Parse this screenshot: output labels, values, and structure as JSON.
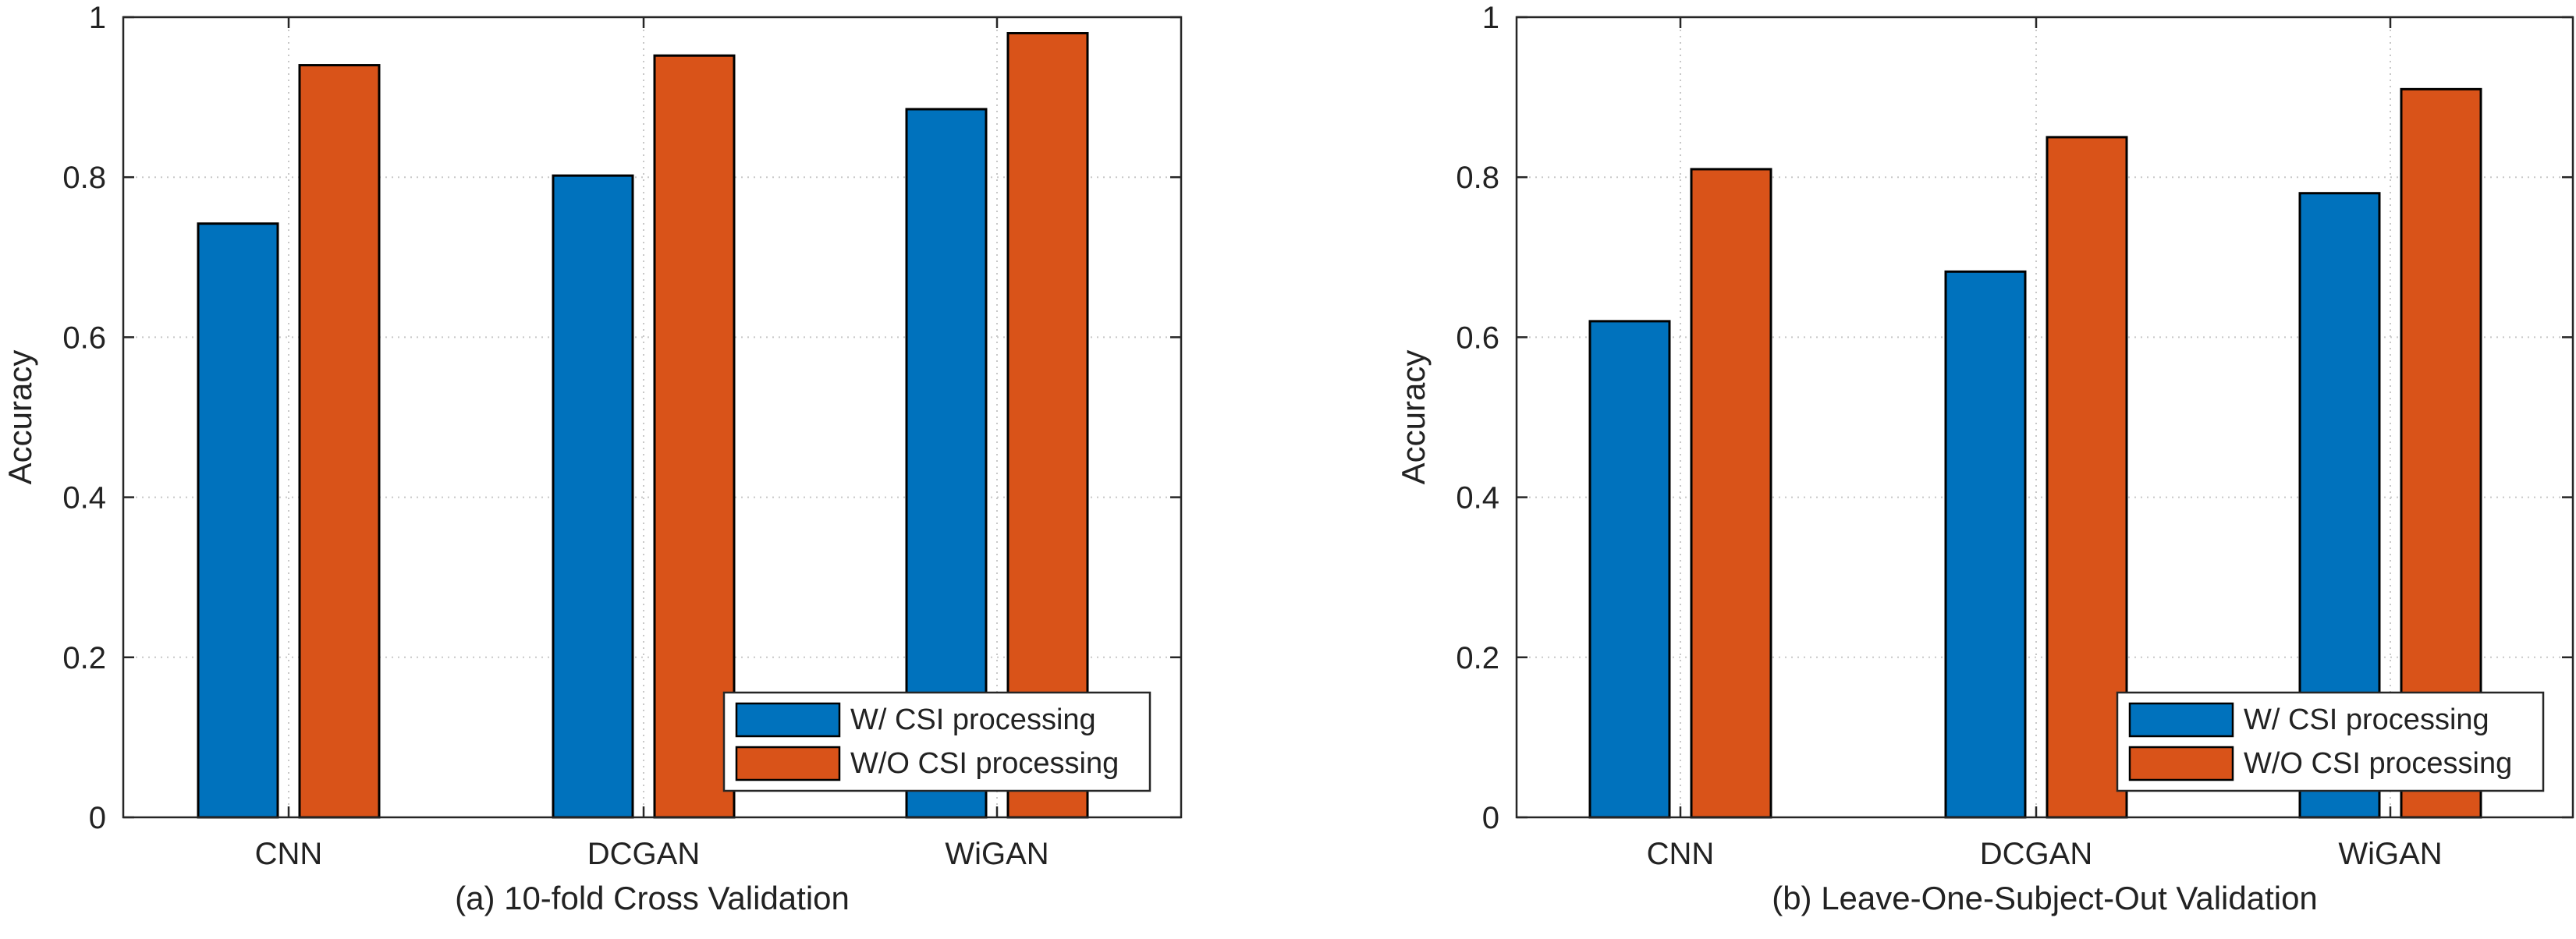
{
  "colors": {
    "series_1": "#0072BD",
    "series_2": "#D95319",
    "axis": "#262626",
    "grid": "#c8c8c8",
    "text": "#222222"
  },
  "chart_data": [
    {
      "type": "bar",
      "title": "(a) 10-fold Cross Validation",
      "xlabel": "",
      "ylabel": "Accuracy",
      "ylim": [
        0,
        1
      ],
      "yticks": [
        "0",
        "0.2",
        "0.4",
        "0.6",
        "0.8",
        "1"
      ],
      "ytick_values": [
        0,
        0.2,
        0.4,
        0.6,
        0.8,
        1
      ],
      "grid": true,
      "legend_position": "bottom-right",
      "categories": [
        "CNN",
        "DCGAN",
        "WiGAN"
      ],
      "series": [
        {
          "name": "W/ CSI processing",
          "values": [
            0.742,
            0.802,
            0.885
          ]
        },
        {
          "name": "W/O CSI processing",
          "values": [
            0.94,
            0.952,
            0.98
          ]
        }
      ]
    },
    {
      "type": "bar",
      "title": "(b) Leave-One-Subject-Out Validation",
      "xlabel": "",
      "ylabel": "Accuracy",
      "ylim": [
        0,
        1
      ],
      "yticks": [
        "0",
        "0.2",
        "0.4",
        "0.6",
        "0.8",
        "1"
      ],
      "ytick_values": [
        0,
        0.2,
        0.4,
        0.6,
        0.8,
        1
      ],
      "grid": true,
      "legend_position": "bottom-right",
      "categories": [
        "CNN",
        "DCGAN",
        "WiGAN"
      ],
      "series": [
        {
          "name": "W/ CSI processing",
          "values": [
            0.62,
            0.682,
            0.78
          ]
        },
        {
          "name": "W/O CSI processing",
          "values": [
            0.81,
            0.85,
            0.91
          ]
        }
      ]
    }
  ]
}
